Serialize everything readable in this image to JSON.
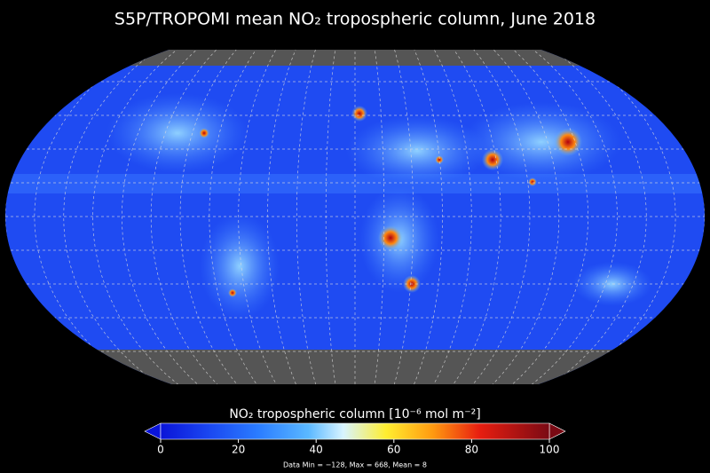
{
  "title": "S5P/TROPOMI mean NO₂ tropospheric column, June 2018",
  "colorbar": {
    "label": "NO₂ tropospheric column [10⁻⁶ mol m⁻²]",
    "lim": [
      0,
      100
    ],
    "ticks": [
      0,
      20,
      40,
      60,
      80,
      100
    ]
  },
  "footer": "Data Min = −128, Max = 668, Mean = 8"
}
